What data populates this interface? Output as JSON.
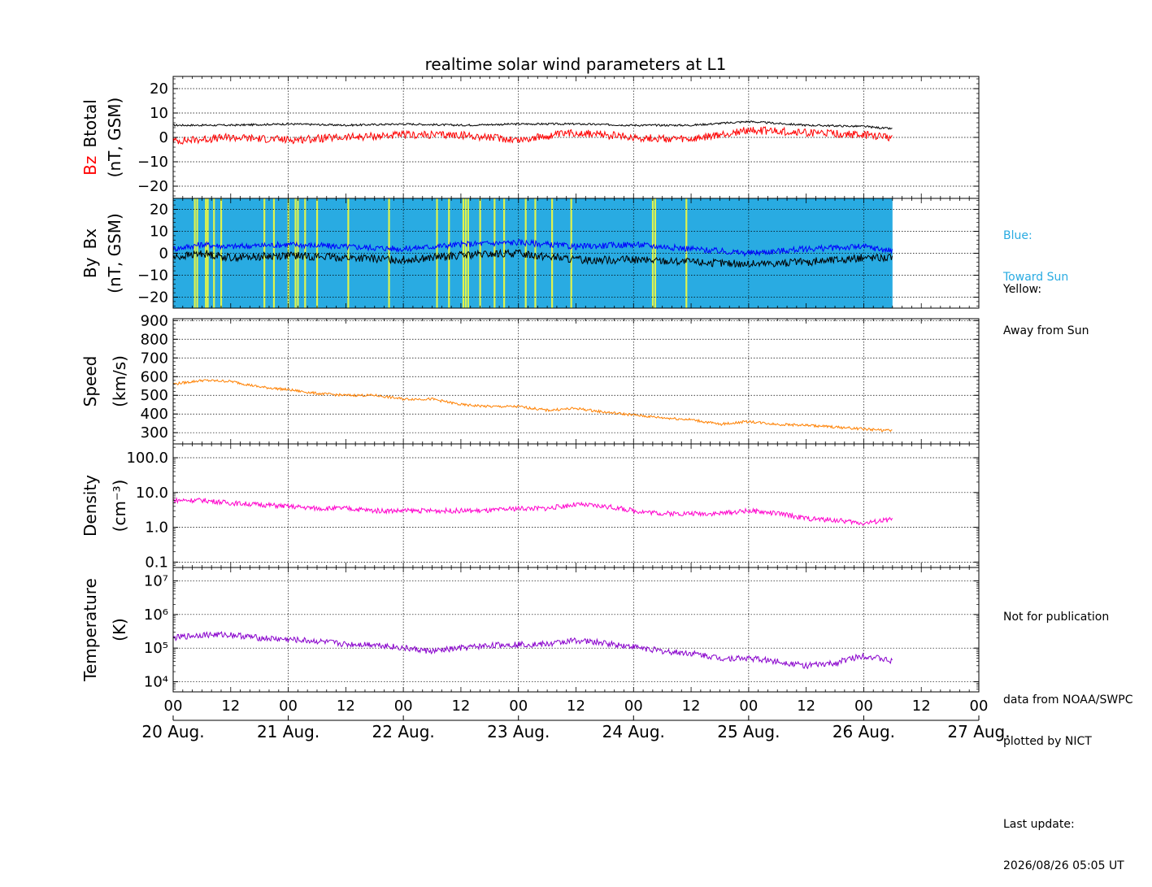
{
  "colors": {
    "btotal": "#000000",
    "bz": "#ff0000",
    "bx": "#0000ff",
    "by": "#000000",
    "speed": "#ff8000",
    "density": "#ff00cc",
    "temperature": "#8800cc",
    "toward_sun": "#29abe2",
    "away_from_sun": "#ffff33"
  },
  "side_notes": {
    "toward_title": "Blue:",
    "toward_text": "Toward Sun",
    "away_title": "Yellow:",
    "away_text": "Away from Sun",
    "not_for_publication": "Not for publication",
    "data_from": "data from NOAA/SWPC",
    "plotted_by": "plotted by NICT",
    "last_update_label": "Last update:",
    "last_update_value": "2026/08/26 05:05 UT"
  },
  "chart_data": [
    {
      "type": "line",
      "title": "realtime solar wind parameters at L1",
      "ylabel": [
        "Bz",
        "Btotal",
        "(nT, GSM)"
      ],
      "ylim": [
        -25,
        25
      ],
      "yticks": [
        -20,
        -10,
        0,
        10,
        20
      ],
      "ytick_labels": [
        "−20",
        "−10",
        "0",
        "10",
        "20"
      ],
      "x_hours": [
        0,
        12,
        24,
        36,
        48,
        60,
        72,
        84,
        96,
        108,
        120,
        132,
        144,
        150
      ],
      "series": [
        {
          "name": "Btotal",
          "values": [
            5,
            5,
            5.5,
            5,
            5.5,
            5,
            5.5,
            5.5,
            5,
            5,
            6.5,
            5,
            4.5,
            3.5
          ]
        },
        {
          "name": "Bz",
          "values": [
            -1.5,
            0,
            -1,
            0,
            1,
            1,
            -1,
            2,
            0,
            -1,
            3,
            2,
            1,
            0
          ]
        }
      ]
    },
    {
      "type": "line",
      "ylabel": [
        "By",
        "Bx",
        "(nT, GSM)"
      ],
      "ylim": [
        -25,
        25
      ],
      "yticks": [
        -20,
        -10,
        0,
        10,
        20
      ],
      "ytick_labels": [
        "−20",
        "−10",
        "0",
        "10",
        "20"
      ],
      "x_hours": [
        0,
        6,
        12,
        24,
        36,
        48,
        60,
        72,
        84,
        96,
        108,
        120,
        132,
        144,
        150
      ],
      "series": [
        {
          "name": "Bx",
          "values": [
            2,
            4,
            3,
            4,
            3,
            2,
            4,
            5,
            3,
            4,
            2,
            0,
            2,
            3,
            1
          ]
        },
        {
          "name": "By",
          "values": [
            -2,
            0,
            -2,
            -1,
            -2,
            -3,
            -1,
            0,
            -3,
            -3,
            -4,
            -5,
            -4,
            -2,
            -2
          ]
        }
      ],
      "imf_sector_end_hour": 150,
      "away_from_sun_hours": [
        4.5,
        5,
        6.8,
        7.2,
        8.5,
        10,
        19,
        21,
        24,
        25.5,
        26,
        27.5,
        30,
        36.5,
        45,
        55,
        57.5,
        60.5,
        61,
        61.5,
        64,
        67,
        69,
        73.5,
        75.5,
        79,
        83,
        100,
        100.5,
        107
      ]
    },
    {
      "type": "line",
      "ylabel": [
        "Speed",
        "(km/s)"
      ],
      "ylim": [
        240,
        910
      ],
      "yticks": [
        300,
        400,
        500,
        600,
        700,
        800,
        900
      ],
      "ytick_labels": [
        "300",
        "400",
        "500",
        "600",
        "700",
        "800",
        "900"
      ],
      "x_hours": [
        0,
        6,
        12,
        18,
        24,
        30,
        36,
        42,
        48,
        54,
        60,
        66,
        72,
        78,
        84,
        90,
        96,
        102,
        108,
        114,
        120,
        126,
        132,
        138,
        144,
        150
      ],
      "series": [
        {
          "name": "Speed",
          "values": [
            560,
            580,
            575,
            545,
            530,
            510,
            500,
            500,
            480,
            480,
            450,
            440,
            440,
            420,
            430,
            410,
            395,
            380,
            370,
            345,
            360,
            345,
            340,
            330,
            320,
            310
          ]
        }
      ]
    },
    {
      "type": "line",
      "yscale": "log",
      "ylabel": [
        "Density",
        "(cm⁻³)"
      ],
      "ylim": [
        0.07,
        250
      ],
      "yticks": [
        0.1,
        1,
        10,
        100
      ],
      "ytick_labels": [
        "0.1",
        "1.0",
        "10.0",
        "100.0"
      ],
      "x_hours": [
        0,
        6,
        12,
        18,
        24,
        30,
        36,
        42,
        48,
        54,
        60,
        66,
        72,
        78,
        84,
        90,
        96,
        102,
        108,
        114,
        120,
        126,
        132,
        138,
        144,
        150
      ],
      "series": [
        {
          "name": "Density",
          "values": [
            6,
            6,
            5,
            4.5,
            4,
            3.5,
            3.5,
            3,
            3,
            3,
            3,
            3,
            3.5,
            3.5,
            4.5,
            4,
            3,
            2.5,
            2.5,
            2.5,
            3,
            2.5,
            1.8,
            1.6,
            1.3,
            1.7
          ]
        }
      ]
    },
    {
      "type": "line",
      "yscale": "log",
      "ylabel": [
        "Temperature",
        "(K)"
      ],
      "ylim": [
        5000,
        25000000
      ],
      "yticks": [
        10000,
        100000,
        1000000,
        10000000
      ],
      "ytick_labels": [
        "10⁴",
        "10⁵",
        "10⁶",
        "10⁷"
      ],
      "x_hours": [
        0,
        6,
        12,
        18,
        24,
        30,
        36,
        42,
        48,
        54,
        60,
        66,
        72,
        78,
        84,
        90,
        96,
        102,
        108,
        114,
        120,
        126,
        132,
        138,
        144,
        150
      ],
      "series": [
        {
          "name": "Temperature",
          "values": [
            200000,
            250000,
            250000,
            200000,
            180000,
            160000,
            130000,
            130000,
            100000,
            80000,
            100000,
            120000,
            130000,
            130000,
            170000,
            140000,
            110000,
            80000,
            70000,
            50000,
            50000,
            40000,
            30000,
            35000,
            60000,
            40000
          ]
        }
      ]
    }
  ],
  "x_axis": {
    "hour_ticks": [
      0,
      12,
      24,
      36,
      48,
      60,
      72,
      84,
      96,
      108,
      120,
      132,
      144,
      156,
      168
    ],
    "hour_labels": [
      "00",
      "12",
      "00",
      "12",
      "00",
      "12",
      "00",
      "12",
      "00",
      "12",
      "00",
      "12",
      "00",
      "12",
      "00"
    ],
    "date_labels": [
      "20 Aug.",
      "21 Aug.",
      "22 Aug.",
      "23 Aug.",
      "24 Aug.",
      "25 Aug.",
      "26 Aug.",
      "27 Aug."
    ]
  }
}
